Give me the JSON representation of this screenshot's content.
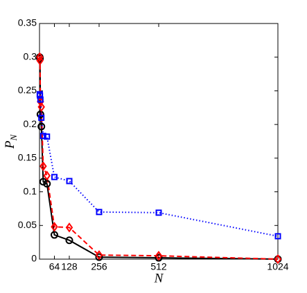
{
  "chart_data": {
    "type": "line",
    "xlabel": "N",
    "ylabel": {
      "base": "P",
      "sub": "N"
    },
    "x": [
      1,
      2,
      4,
      8,
      16,
      32,
      64,
      128,
      256,
      512,
      1024
    ],
    "series": [
      {
        "color": "#000000",
        "marker": "circle",
        "linestyle": "solid",
        "values": [
          0.3,
          0.298,
          0.215,
          0.197,
          0.115,
          0.112,
          0.036,
          0.028,
          0.003,
          0.002,
          0.0
        ]
      },
      {
        "color": "#ff0000",
        "marker": "diamond",
        "linestyle": "dashed",
        "values": [
          0.3,
          0.295,
          0.234,
          0.226,
          0.138,
          0.124,
          0.048,
          0.047,
          0.006,
          0.005,
          0.0
        ]
      },
      {
        "color": "#0000ff",
        "marker": "square",
        "linestyle": "dotted",
        "values": [
          0.245,
          0.243,
          0.237,
          0.21,
          0.183,
          0.182,
          0.122,
          0.116,
          0.07,
          0.069,
          0.034
        ]
      }
    ],
    "xlim": [
      0,
      1024
    ],
    "xticks": [
      64,
      128,
      256,
      512,
      1024
    ],
    "ylim": [
      0,
      0.35
    ],
    "yticks": [
      0,
      0.05,
      0.1,
      0.15,
      0.2,
      0.25,
      0.3,
      0.35
    ]
  }
}
